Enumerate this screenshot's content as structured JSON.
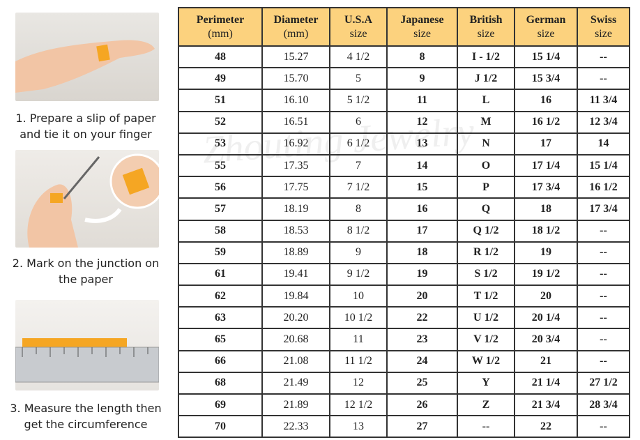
{
  "steps": [
    {
      "lines": [
        "1. Prepare a slip of paper",
        "and tie it on your finger"
      ]
    },
    {
      "lines": [
        "2. Mark on the junction on",
        "the paper"
      ]
    },
    {
      "lines": [
        "3. Measure the length then",
        "get the circumference"
      ]
    }
  ],
  "watermark": "Zhouting Jewelry",
  "table": {
    "headers": [
      [
        "Perimeter",
        "(mm)"
      ],
      [
        "Diameter",
        "(mm)"
      ],
      [
        "U.S.A",
        "size"
      ],
      [
        "Japanese",
        "size"
      ],
      [
        "British",
        "size"
      ],
      [
        "German",
        "size"
      ],
      [
        "Swiss",
        "size"
      ]
    ],
    "rows": [
      [
        "48",
        "15.27",
        "4 1/2",
        "8",
        "I - 1/2",
        "15 1/4",
        "--"
      ],
      [
        "49",
        "15.70",
        "5",
        "9",
        "J 1/2",
        "15 3/4",
        "--"
      ],
      [
        "51",
        "16.10",
        "5 1/2",
        "11",
        "L",
        "16",
        "11 3/4"
      ],
      [
        "52",
        "16.51",
        "6",
        "12",
        "M",
        "16 1/2",
        "12 3/4"
      ],
      [
        "53",
        "16.92",
        "6 1/2",
        "13",
        "N",
        "17",
        "14"
      ],
      [
        "55",
        "17.35",
        "7",
        "14",
        "O",
        "17 1/4",
        "15 1/4"
      ],
      [
        "56",
        "17.75",
        "7 1/2",
        "15",
        "P",
        "17 3/4",
        "16 1/2"
      ],
      [
        "57",
        "18.19",
        "8",
        "16",
        "Q",
        "18",
        "17 3/4"
      ],
      [
        "58",
        "18.53",
        "8 1/2",
        "17",
        "Q 1/2",
        "18 1/2",
        "--"
      ],
      [
        "59",
        "18.89",
        "9",
        "18",
        "R 1/2",
        "19",
        "--"
      ],
      [
        "61",
        "19.41",
        "9 1/2",
        "19",
        "S 1/2",
        "19 1/2",
        "--"
      ],
      [
        "62",
        "19.84",
        "10",
        "20",
        "T 1/2",
        "20",
        "--"
      ],
      [
        "63",
        "20.20",
        "10 1/2",
        "22",
        "U 1/2",
        "20 1/4",
        "--"
      ],
      [
        "65",
        "20.68",
        "11",
        "23",
        "V 1/2",
        "20 3/4",
        "--"
      ],
      [
        "66",
        "21.08",
        "11 1/2",
        "24",
        "W 1/2",
        "21",
        "--"
      ],
      [
        "68",
        "21.49",
        "12",
        "25",
        "Y",
        "21 1/4",
        "27 1/2"
      ],
      [
        "69",
        "21.89",
        "12 1/2",
        "26",
        "Z",
        "21 3/4",
        "28 3/4"
      ],
      [
        "70",
        "22.33",
        "13",
        "27",
        "--",
        "22",
        "--"
      ]
    ]
  }
}
